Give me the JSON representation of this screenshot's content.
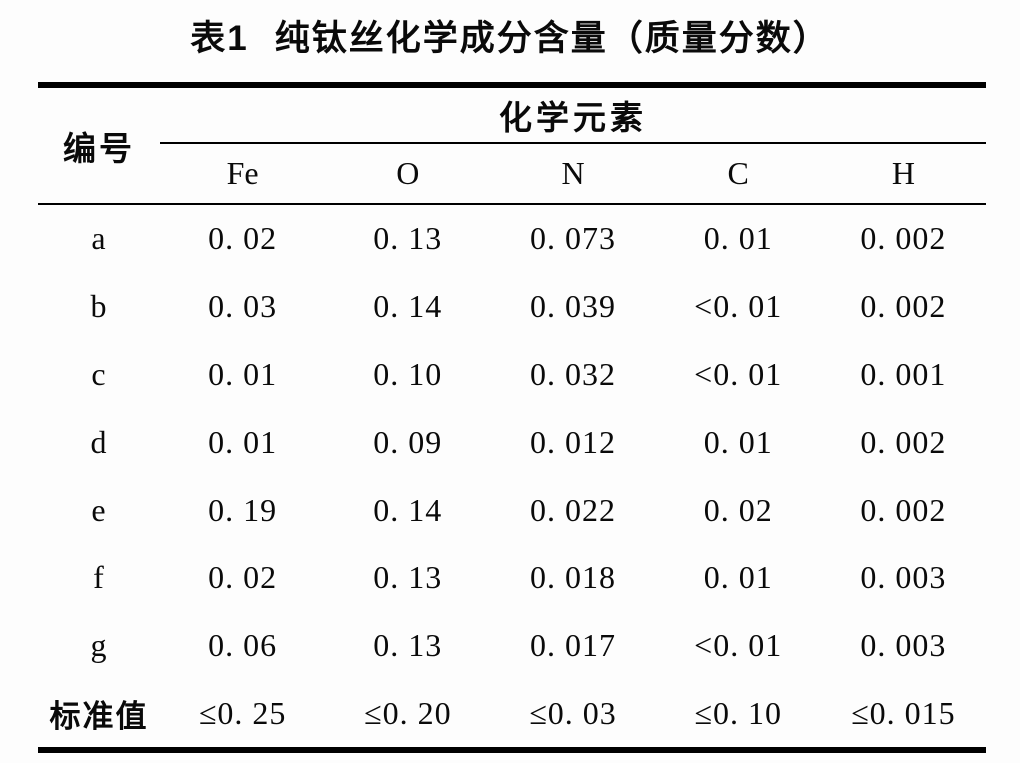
{
  "page": {
    "background": "#fdfdfd",
    "text_color": "#0a0a0a",
    "rule_color": "#000000"
  },
  "caption": {
    "label": "表1",
    "title": "纯钛丝化学成分含量（质量分数）"
  },
  "table": {
    "row_header": "编号",
    "group_header": "化学元素",
    "columns": [
      "Fe",
      "O",
      "N",
      "C",
      "H"
    ],
    "rows": [
      {
        "id": "a",
        "values": [
          "0. 02",
          "0. 13",
          "0. 073",
          "0. 01",
          "0. 002"
        ]
      },
      {
        "id": "b",
        "values": [
          "0. 03",
          "0. 14",
          "0. 039",
          "<0. 01",
          "0. 002"
        ]
      },
      {
        "id": "c",
        "values": [
          "0. 01",
          "0. 10",
          "0. 032",
          "<0. 01",
          "0. 001"
        ]
      },
      {
        "id": "d",
        "values": [
          "0. 01",
          "0. 09",
          "0. 012",
          "0. 01",
          "0. 002"
        ]
      },
      {
        "id": "e",
        "values": [
          "0. 19",
          "0. 14",
          "0. 022",
          "0. 02",
          "0. 002"
        ]
      },
      {
        "id": "f",
        "values": [
          "0. 02",
          "0. 13",
          "0. 018",
          "0. 01",
          "0. 003"
        ]
      },
      {
        "id": "g",
        "values": [
          "0. 06",
          "0. 13",
          "0. 017",
          "<0. 01",
          "0. 003"
        ]
      },
      {
        "id": "标准值",
        "values": [
          "≤0. 25",
          "≤0. 20",
          "≤0. 03",
          "≤0. 10",
          "≤0. 015"
        ]
      }
    ]
  }
}
